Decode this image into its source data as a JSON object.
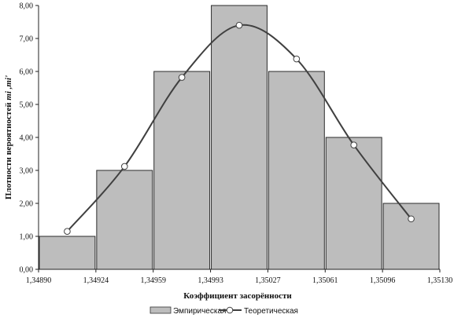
{
  "chart_data": {
    "type": "bar",
    "x_ticks": [
      "1,34890",
      "1,34924",
      "1,34959",
      "1,34993",
      "1,35027",
      "1,35061",
      "1,35096",
      "1,35130"
    ],
    "y_ticks": [
      "0,00",
      "1,00",
      "2,00",
      "3,00",
      "4,00",
      "5,00",
      "6,00",
      "7,00",
      "8,00"
    ],
    "ylim": [
      0,
      8
    ],
    "xlabel": "Коэффициент засорённости",
    "ylabel": "Плотности вероятностей mi ,mi'",
    "grid": false,
    "legend_position": "bottom",
    "series": [
      {
        "name": "Эмпирическая",
        "type": "bar",
        "color": "#bdbdbd",
        "values": [
          1.0,
          3.0,
          6.0,
          8.0,
          6.0,
          4.0,
          2.0
        ]
      },
      {
        "name": "Теоретическая",
        "type": "line",
        "color": "#404040",
        "values": [
          1.15,
          3.12,
          5.82,
          7.4,
          6.38,
          3.77,
          1.53
        ]
      }
    ]
  }
}
